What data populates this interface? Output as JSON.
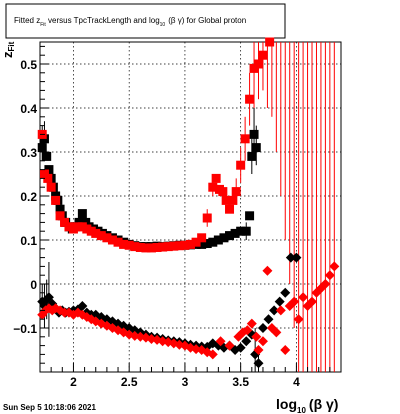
{
  "chart_data": {
    "type": "scatter",
    "title_parts": {
      "a": "Fitted  z",
      "a_sub": "Fit",
      "b": "  versus TpcTrackLength and log",
      "b_sub": "10",
      "c": "(β γ) for Global proton"
    },
    "ylabel_main": "z",
    "ylabel_sub": "Fit",
    "xlabel_main": "log",
    "xlabel_sub": "10",
    "xlabel_tail": "(β γ)",
    "xlim": [
      1.7,
      4.4
    ],
    "ylim": [
      -0.2,
      0.55
    ],
    "x_ticks": [
      {
        "v": 2,
        "label": "2"
      },
      {
        "v": 2.5,
        "label": "2.5"
      },
      {
        "v": 3,
        "label": "3"
      },
      {
        "v": 3.5,
        "label": "3.5"
      },
      {
        "v": 4,
        "label": "4"
      }
    ],
    "y_ticks": [
      {
        "v": -0.1,
        "label": "−0.1"
      },
      {
        "v": 0,
        "label": "0"
      },
      {
        "v": 0.1,
        "label": "0.1"
      },
      {
        "v": 0.2,
        "label": "0.2"
      },
      {
        "v": 0.3,
        "label": "0.3"
      },
      {
        "v": 0.4,
        "label": "0.4"
      },
      {
        "v": 0.5,
        "label": "0.5"
      }
    ],
    "grid": true,
    "footer": "Sun Sep  5 10:18:06 2021",
    "colors": {
      "black": "#000000",
      "red": "#ff0000"
    },
    "series": [
      {
        "marker": "square",
        "color": "#000000",
        "points": [
          [
            1.72,
            0.31
          ],
          [
            1.74,
            0.33
          ],
          [
            1.76,
            0.29
          ],
          [
            1.78,
            0.26
          ],
          [
            1.8,
            0.24
          ],
          [
            1.82,
            0.22
          ],
          [
            1.84,
            0.2
          ],
          [
            1.86,
            0.19
          ],
          [
            1.88,
            0.17
          ],
          [
            1.9,
            0.155
          ],
          [
            1.93,
            0.14
          ],
          [
            1.96,
            0.13
          ],
          [
            1.99,
            0.125
          ],
          [
            2.02,
            0.13
          ],
          [
            2.05,
            0.14
          ],
          [
            2.08,
            0.16
          ],
          [
            2.11,
            0.14
          ],
          [
            2.14,
            0.13
          ],
          [
            2.18,
            0.125
          ],
          [
            2.22,
            0.12
          ],
          [
            2.26,
            0.115
          ],
          [
            2.3,
            0.11
          ],
          [
            2.35,
            0.105
          ],
          [
            2.4,
            0.1
          ],
          [
            2.45,
            0.095
          ],
          [
            2.5,
            0.09
          ],
          [
            2.55,
            0.087
          ],
          [
            2.6,
            0.085
          ],
          [
            2.65,
            0.085
          ],
          [
            2.7,
            0.085
          ],
          [
            2.75,
            0.086
          ],
          [
            2.8,
            0.085
          ],
          [
            2.85,
            0.086
          ],
          [
            2.9,
            0.087
          ],
          [
            2.95,
            0.088
          ],
          [
            3.0,
            0.088
          ],
          [
            3.05,
            0.089
          ],
          [
            3.1,
            0.09
          ],
          [
            3.15,
            0.09
          ],
          [
            3.2,
            0.092
          ],
          [
            3.25,
            0.095
          ],
          [
            3.3,
            0.1
          ],
          [
            3.35,
            0.105
          ],
          [
            3.4,
            0.11
          ],
          [
            3.45,
            0.115
          ],
          [
            3.5,
            0.12
          ],
          [
            3.55,
            0.12
          ],
          [
            3.58,
            0.155
          ],
          [
            3.6,
            0.29
          ],
          [
            3.62,
            0.34
          ],
          [
            3.64,
            0.31
          ]
        ],
        "errors": [
          [
            1.72,
            0.28,
            0.36
          ],
          [
            1.74,
            0.3,
            0.37
          ],
          [
            3.55,
            0.1,
            0.14
          ],
          [
            3.6,
            0.25,
            0.33
          ],
          [
            3.62,
            0.3,
            0.4
          ],
          [
            3.64,
            0.27,
            0.36
          ]
        ]
      },
      {
        "marker": "square",
        "color": "#ff0000",
        "points": [
          [
            1.72,
            0.34
          ],
          [
            1.74,
            0.25
          ],
          [
            1.77,
            0.24
          ],
          [
            1.8,
            0.22
          ],
          [
            1.84,
            0.19
          ],
          [
            1.88,
            0.155
          ],
          [
            1.92,
            0.14
          ],
          [
            1.96,
            0.13
          ],
          [
            2.0,
            0.125
          ],
          [
            2.04,
            0.13
          ],
          [
            2.08,
            0.13
          ],
          [
            2.12,
            0.125
          ],
          [
            2.16,
            0.12
          ],
          [
            2.2,
            0.115
          ],
          [
            2.25,
            0.11
          ],
          [
            2.3,
            0.105
          ],
          [
            2.35,
            0.1
          ],
          [
            2.4,
            0.095
          ],
          [
            2.45,
            0.09
          ],
          [
            2.5,
            0.088
          ],
          [
            2.55,
            0.085
          ],
          [
            2.6,
            0.083
          ],
          [
            2.65,
            0.082
          ],
          [
            2.7,
            0.082
          ],
          [
            2.75,
            0.083
          ],
          [
            2.8,
            0.084
          ],
          [
            2.85,
            0.085
          ],
          [
            2.9,
            0.086
          ],
          [
            2.95,
            0.087
          ],
          [
            3.0,
            0.088
          ],
          [
            3.05,
            0.09
          ],
          [
            3.1,
            0.095
          ],
          [
            3.15,
            0.105
          ],
          [
            3.2,
            0.15
          ],
          [
            3.25,
            0.22
          ],
          [
            3.28,
            0.24
          ],
          [
            3.31,
            0.215
          ],
          [
            3.34,
            0.21
          ],
          [
            3.37,
            0.19
          ],
          [
            3.4,
            0.17
          ],
          [
            3.43,
            0.19
          ],
          [
            3.46,
            0.21
          ],
          [
            3.5,
            0.27
          ],
          [
            3.54,
            0.33
          ],
          [
            3.58,
            0.42
          ],
          [
            3.62,
            0.49
          ],
          [
            3.66,
            0.5
          ],
          [
            3.7,
            0.52
          ],
          [
            3.76,
            0.55
          ]
        ],
        "errors": [
          [
            3.2,
            0.13,
            0.17
          ],
          [
            3.25,
            0.2,
            0.24
          ],
          [
            3.46,
            0.18,
            0.24
          ],
          [
            3.5,
            0.23,
            0.31
          ],
          [
            3.54,
            0.28,
            0.38
          ],
          [
            3.58,
            0.36,
            0.48
          ],
          [
            3.62,
            0.4,
            0.58
          ],
          [
            3.66,
            0.42,
            0.58
          ],
          [
            3.7,
            0.44,
            0.6
          ],
          [
            3.74,
            0.4,
            0.6
          ],
          [
            3.78,
            0.38,
            0.6
          ],
          [
            3.82,
            0.3,
            0.6
          ],
          [
            3.86,
            0.2,
            0.6
          ],
          [
            3.9,
            0.1,
            0.6
          ],
          [
            3.94,
            0.0,
            0.6
          ],
          [
            3.98,
            -0.1,
            0.6
          ],
          [
            4.02,
            -0.2,
            0.6
          ],
          [
            4.06,
            -0.2,
            0.6
          ],
          [
            4.1,
            -0.2,
            0.6
          ],
          [
            4.14,
            -0.2,
            0.6
          ],
          [
            4.18,
            -0.2,
            0.6
          ],
          [
            4.22,
            -0.2,
            0.6
          ],
          [
            4.26,
            -0.2,
            0.6
          ],
          [
            4.3,
            -0.2,
            0.6
          ],
          [
            4.34,
            -0.2,
            0.6
          ]
        ]
      },
      {
        "marker": "diamond",
        "color": "#000000",
        "points": [
          [
            1.72,
            -0.04
          ],
          [
            1.74,
            -0.05
          ],
          [
            1.76,
            -0.035
          ],
          [
            1.78,
            -0.03
          ],
          [
            1.81,
            -0.045
          ],
          [
            1.84,
            -0.055
          ],
          [
            1.87,
            -0.065
          ],
          [
            1.9,
            -0.06
          ],
          [
            1.93,
            -0.065
          ],
          [
            1.96,
            -0.063
          ],
          [
            2.0,
            -0.06
          ],
          [
            2.04,
            -0.058
          ],
          [
            2.08,
            -0.05
          ],
          [
            2.12,
            -0.065
          ],
          [
            2.16,
            -0.07
          ],
          [
            2.2,
            -0.07
          ],
          [
            2.25,
            -0.075
          ],
          [
            2.3,
            -0.08
          ],
          [
            2.35,
            -0.085
          ],
          [
            2.4,
            -0.09
          ],
          [
            2.45,
            -0.095
          ],
          [
            2.5,
            -0.1
          ],
          [
            2.55,
            -0.105
          ],
          [
            2.6,
            -0.11
          ],
          [
            2.65,
            -0.115
          ],
          [
            2.7,
            -0.12
          ],
          [
            2.75,
            -0.122
          ],
          [
            2.8,
            -0.125
          ],
          [
            2.85,
            -0.128
          ],
          [
            2.9,
            -0.13
          ],
          [
            2.95,
            -0.132
          ],
          [
            3.0,
            -0.135
          ],
          [
            3.05,
            -0.138
          ],
          [
            3.1,
            -0.14
          ],
          [
            3.15,
            -0.142
          ],
          [
            3.2,
            -0.143
          ],
          [
            3.25,
            -0.135
          ],
          [
            3.3,
            -0.14
          ],
          [
            3.35,
            -0.145
          ],
          [
            3.4,
            -0.14
          ],
          [
            3.45,
            -0.15
          ],
          [
            3.5,
            -0.145
          ],
          [
            3.55,
            -0.13
          ],
          [
            3.6,
            -0.115
          ],
          [
            3.63,
            -0.16
          ],
          [
            3.66,
            -0.18
          ],
          [
            3.7,
            -0.1
          ],
          [
            3.75,
            -0.08
          ],
          [
            3.8,
            -0.06
          ],
          [
            3.85,
            -0.04
          ],
          [
            3.9,
            -0.02
          ],
          [
            3.95,
            0.06
          ],
          [
            4.0,
            0.06
          ]
        ],
        "errors": [
          [
            1.72,
            -0.08,
            0.0
          ],
          [
            1.74,
            -0.1,
            0.0
          ],
          [
            1.76,
            -0.08,
            0.01
          ],
          [
            1.78,
            -0.12,
            0.05
          ],
          [
            3.63,
            -0.2,
            -0.1
          ],
          [
            3.66,
            -0.2,
            -0.14
          ]
        ]
      },
      {
        "marker": "diamond",
        "color": "#ff0000",
        "points": [
          [
            1.72,
            -0.07
          ],
          [
            1.75,
            -0.06
          ],
          [
            1.78,
            -0.055
          ],
          [
            1.81,
            -0.06
          ],
          [
            1.84,
            -0.055
          ],
          [
            1.88,
            -0.06
          ],
          [
            1.92,
            -0.065
          ],
          [
            1.96,
            -0.065
          ],
          [
            2.0,
            -0.07
          ],
          [
            2.04,
            -0.065
          ],
          [
            2.08,
            -0.07
          ],
          [
            2.12,
            -0.075
          ],
          [
            2.16,
            -0.08
          ],
          [
            2.2,
            -0.085
          ],
          [
            2.25,
            -0.09
          ],
          [
            2.3,
            -0.095
          ],
          [
            2.35,
            -0.1
          ],
          [
            2.4,
            -0.105
          ],
          [
            2.45,
            -0.11
          ],
          [
            2.5,
            -0.115
          ],
          [
            2.55,
            -0.118
          ],
          [
            2.6,
            -0.12
          ],
          [
            2.65,
            -0.122
          ],
          [
            2.7,
            -0.125
          ],
          [
            2.75,
            -0.127
          ],
          [
            2.8,
            -0.13
          ],
          [
            2.85,
            -0.132
          ],
          [
            2.9,
            -0.135
          ],
          [
            2.95,
            -0.138
          ],
          [
            3.0,
            -0.14
          ],
          [
            3.05,
            -0.145
          ],
          [
            3.1,
            -0.148
          ],
          [
            3.15,
            -0.15
          ],
          [
            3.2,
            -0.155
          ],
          [
            3.25,
            -0.16
          ],
          [
            3.32,
            -0.13
          ],
          [
            3.4,
            -0.14
          ],
          [
            3.48,
            -0.12
          ],
          [
            3.52,
            -0.11
          ],
          [
            3.56,
            -0.105
          ],
          [
            3.6,
            -0.09
          ],
          [
            3.64,
            -0.12
          ],
          [
            3.66,
            -0.15
          ],
          [
            3.7,
            -0.13
          ],
          [
            3.74,
            0.03
          ],
          [
            3.78,
            -0.1
          ],
          [
            3.82,
            -0.11
          ],
          [
            3.86,
            -0.06
          ],
          [
            3.9,
            -0.15
          ],
          [
            3.94,
            -0.05
          ],
          [
            3.98,
            -0.04
          ],
          [
            4.02,
            -0.08
          ],
          [
            4.06,
            -0.03
          ],
          [
            4.1,
            -0.05
          ],
          [
            4.14,
            -0.04
          ],
          [
            4.18,
            -0.02
          ],
          [
            4.22,
            -0.01
          ],
          [
            4.26,
            0.0
          ],
          [
            4.3,
            0.02
          ],
          [
            4.34,
            0.04
          ]
        ],
        "errors": []
      }
    ]
  }
}
